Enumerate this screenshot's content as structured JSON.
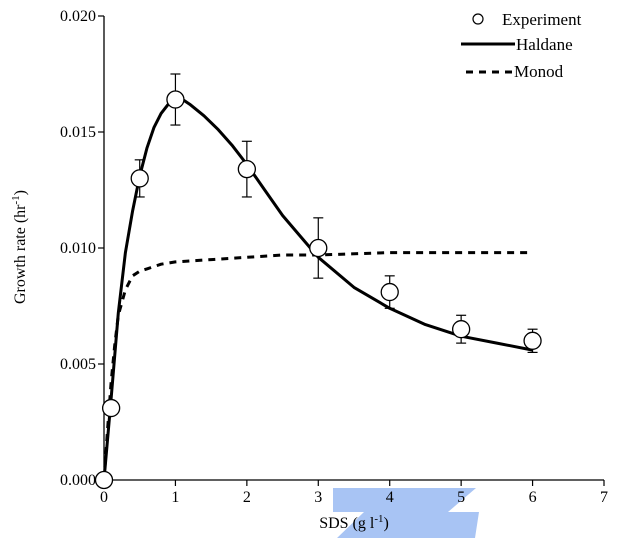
{
  "chart_data": {
    "type": "scatter",
    "xlabel": "SDS (g l",
    "xlabel_sup": "-1",
    "xlabel_end": ")",
    "ylabel": "Growth rate (hr",
    "ylabel_sup": "-1",
    "ylabel_end": ")",
    "xlim": [
      0,
      7
    ],
    "ylim": [
      0,
      0.02
    ],
    "x_ticks": [
      0,
      1,
      2,
      3,
      4,
      5,
      6,
      7
    ],
    "x_tick_labels": [
      "0",
      "1",
      "2",
      "3",
      "4",
      "5",
      "6",
      "7"
    ],
    "y_ticks": [
      0,
      0.005,
      0.01,
      0.015,
      0.02
    ],
    "y_tick_labels": [
      "0.000",
      "0.005",
      "0.010",
      "0.015",
      "0.020"
    ],
    "grid": false,
    "legend_position": "top-right",
    "legend": [
      "Experiment",
      "Haldane",
      "Monod"
    ],
    "series": [
      {
        "name": "Experiment",
        "kind": "markers",
        "x": [
          0,
          0.1,
          0.5,
          1,
          2,
          3,
          4,
          5,
          6
        ],
        "y": [
          0.0,
          0.0031,
          0.013,
          0.0164,
          0.0134,
          0.01,
          0.0081,
          0.0065,
          0.006
        ],
        "err": [
          0,
          0,
          0.0008,
          0.0011,
          0.0012,
          0.0013,
          0.0007,
          0.0006,
          0.0005
        ]
      },
      {
        "name": "Haldane",
        "kind": "solid-line",
        "x": [
          0,
          0.1,
          0.2,
          0.3,
          0.4,
          0.5,
          0.6,
          0.7,
          0.8,
          0.9,
          1.0,
          1.1,
          1.2,
          1.4,
          1.6,
          1.8,
          2.0,
          2.25,
          2.5,
          2.75,
          3.0,
          3.5,
          4.0,
          4.5,
          5.0,
          5.5,
          6.0
        ],
        "y": [
          0.0,
          0.0035,
          0.0072,
          0.0098,
          0.0116,
          0.0131,
          0.0143,
          0.0152,
          0.0158,
          0.0162,
          0.0164,
          0.0164,
          0.0162,
          0.0157,
          0.0151,
          0.0144,
          0.0136,
          0.0125,
          0.0114,
          0.0105,
          0.0096,
          0.0083,
          0.0074,
          0.0067,
          0.0062,
          0.0059,
          0.0056
        ]
      },
      {
        "name": "Monod",
        "kind": "dashed-line",
        "x": [
          0.0,
          0.05,
          0.1,
          0.15,
          0.2,
          0.3,
          0.4,
          0.5,
          0.6,
          0.8,
          1.0,
          1.5,
          2.0,
          2.5,
          3.0,
          4.0,
          5.0,
          6.0
        ],
        "y": [
          0.0,
          0.0022,
          0.0042,
          0.0058,
          0.0071,
          0.0082,
          0.0088,
          0.009,
          0.0091,
          0.0093,
          0.0094,
          0.0095,
          0.0096,
          0.0097,
          0.0097,
          0.0098,
          0.0098,
          0.0098
        ]
      }
    ]
  },
  "watermark": {
    "color": "#a8c4f4"
  }
}
